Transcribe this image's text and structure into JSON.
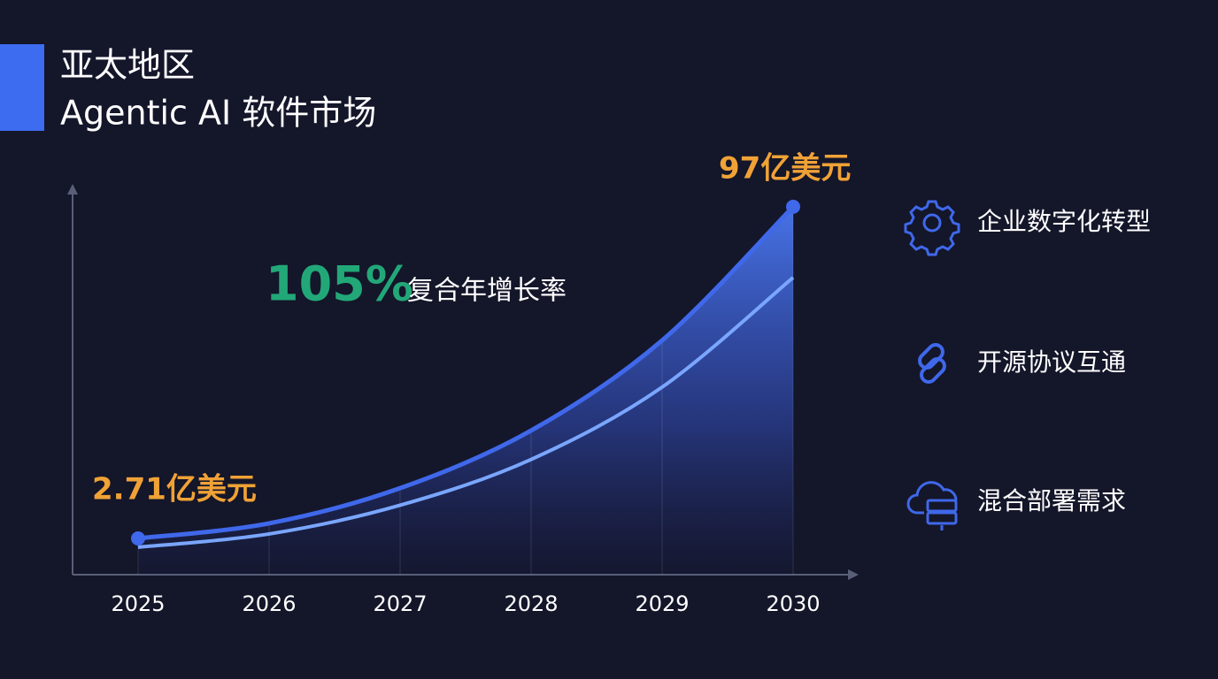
{
  "header": {
    "title_line1": "亚太地区",
    "title_line2": "Agentic AI 软件市场"
  },
  "chart_data": {
    "type": "area",
    "categories": [
      "2025",
      "2026",
      "2027",
      "2028",
      "2029",
      "2030"
    ],
    "series": [
      {
        "color": "#3f68ea",
        "values": [
          2.71,
          7,
          17,
          33.4,
          59,
          97
        ],
        "value_labels": [
          "2.71亿美元",
          null,
          null,
          null,
          null,
          "97亿美元"
        ]
      }
    ],
    "ylim": [
      -7.6,
      103
    ],
    "annotation": {
      "value": "105%",
      "label": "复合年增长率"
    }
  },
  "sidebar": {
    "items": [
      "企业数字化转型",
      "开源协议互通",
      "混合部署需求"
    ]
  }
}
